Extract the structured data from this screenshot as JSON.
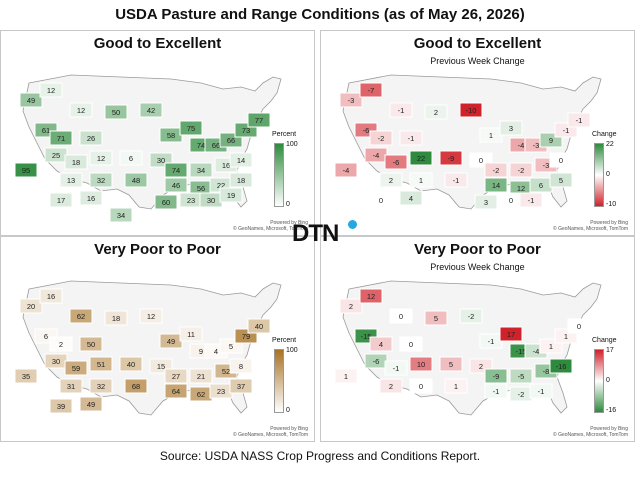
{
  "title": "USDA Pasture and Range Conditions (as of May 26, 2026)",
  "source": "Source:  USDA NASS Crop Progress and Conditions Report.",
  "logo": "DTN",
  "credit_line1": "Powered by Bing",
  "credit_line2": "© GeoNames, Microsoft, TomTom",
  "panels": [
    {
      "title": "Good to Excellent",
      "subtitle": "",
      "legend": {
        "title": "Percent",
        "max": "100",
        "mid": "",
        "min": "0"
      },
      "colors": {
        "high": "#2e8b3d",
        "low": "#ffffff"
      },
      "labels": [
        "49",
        "12",
        "12",
        "50",
        "42",
        "61",
        "71",
        "26",
        "58",
        "75",
        "74",
        "66",
        "66",
        "73",
        "77",
        "25",
        "18",
        "12",
        "6",
        "30",
        "74",
        "34",
        "16",
        "14",
        "95",
        "13",
        "32",
        "48",
        "46",
        "56",
        "22",
        "18",
        "17",
        "16",
        "60",
        "23",
        "30",
        "19",
        "34"
      ]
    },
    {
      "title": "Good to Excellent",
      "subtitle": "Previous Week Change",
      "legend": {
        "title": "Change",
        "max": "22",
        "mid": "0",
        "min": "-10"
      },
      "colors": {
        "high": "#2e8b3d",
        "mid": "#ffffff",
        "low": "#d0222a"
      },
      "labels": [
        "-3",
        "-7",
        "-1",
        "2",
        "-10",
        "-6",
        "-2",
        "-1",
        "1",
        "3",
        "-4",
        "-3",
        "9",
        "-1",
        "-1",
        "-4",
        "-6",
        "22",
        "-9",
        "0",
        "-2",
        "-2",
        "-3",
        "0",
        "-4",
        "2",
        "1",
        "-1",
        "14",
        "12",
        "6",
        "5",
        "0",
        "4",
        "3",
        "0",
        "-1"
      ]
    },
    {
      "title": "Very Poor to Poor",
      "subtitle": "",
      "legend": {
        "title": "Percent",
        "max": "100",
        "mid": "",
        "min": "0"
      },
      "colors": {
        "high": "#a87224",
        "low": "#ffffff"
      },
      "labels": [
        "20",
        "16",
        "62",
        "18",
        "12",
        "6",
        "2",
        "50",
        "49",
        "11",
        "9",
        "4",
        "5",
        "79",
        "40",
        "30",
        "59",
        "51",
        "40",
        "15",
        "27",
        "21",
        "52",
        "8",
        "35",
        "31",
        "32",
        "68",
        "64",
        "62",
        "23",
        "37",
        "39",
        "49"
      ]
    },
    {
      "title": "Very Poor to Poor",
      "subtitle": "Previous Week Change",
      "legend": {
        "title": "Change",
        "max": "17",
        "mid": "0",
        "min": "-16"
      },
      "colors": {
        "high": "#d0222a",
        "mid": "#ffffff",
        "low": "#2e8b3d"
      },
      "labels": [
        "2",
        "12",
        "0",
        "5",
        "-2",
        "-15",
        "4",
        "0",
        "-1",
        "17",
        "-15",
        "-4",
        "1",
        "1",
        "0",
        "-6",
        "-1",
        "10",
        "5",
        "2",
        "-9",
        "-5",
        "-8",
        "-16",
        "1",
        "2",
        "0",
        "1",
        "-1",
        "-2",
        "-1"
      ]
    }
  ]
}
